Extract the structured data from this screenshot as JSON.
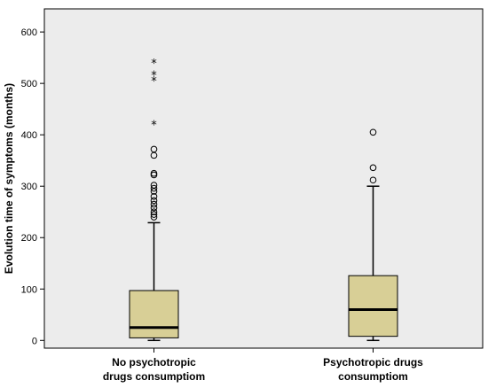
{
  "chart_data": {
    "type": "boxplot",
    "title": "",
    "ylabel": "Evolution time of symptoms (months)",
    "xlabel": "",
    "ylim": [
      -15,
      645
    ],
    "yticks": [
      0,
      100,
      200,
      300,
      400,
      500,
      600
    ],
    "grid": false,
    "legend": "none",
    "colors": {
      "plot_bg": "#ececec",
      "box_fill": "#d8cf96",
      "stroke": "#000000"
    },
    "categories": [
      {
        "label_lines": [
          "No psychotropic",
          "drugs consumptiom"
        ]
      },
      {
        "label_lines": [
          "Psychotropic drugs",
          "consumptiom"
        ]
      }
    ],
    "boxes": [
      {
        "whisker_low": 0,
        "q1": 5,
        "median": 25,
        "q3": 97,
        "whisker_high": 229,
        "outliers": [
          240,
          245,
          250,
          258,
          265,
          272,
          280,
          290,
          296,
          302,
          322,
          325,
          360,
          372
        ],
        "extremes": [
          420,
          505,
          517,
          540
        ]
      },
      {
        "whisker_low": 0,
        "q1": 8,
        "median": 60,
        "q3": 126,
        "whisker_high": 300,
        "outliers": [
          312,
          336,
          405
        ],
        "extremes": []
      }
    ]
  }
}
